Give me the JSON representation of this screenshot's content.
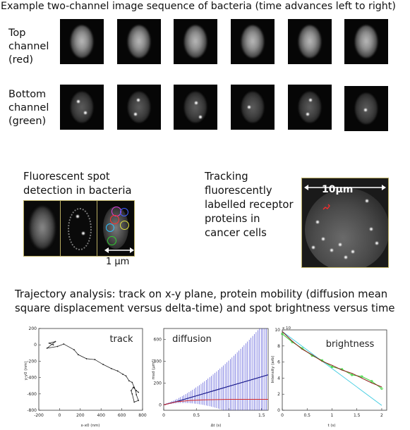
{
  "title": "Example two-channel image sequence of bacteria (time advances left to right)",
  "rows": {
    "top": [
      "Top",
      "channel",
      "(red)"
    ],
    "bottom": [
      "Bottom",
      "channel",
      "(green)"
    ]
  },
  "spot_detection": {
    "label": [
      "Fluorescent spot",
      "detection in bacteria"
    ],
    "scale": "1 μm"
  },
  "tracking": {
    "label": [
      "Tracking",
      "fluorescently",
      "labelled receptor",
      "proteins in",
      "cancer cells"
    ],
    "scale": "10μm"
  },
  "trajectory": {
    "label": [
      "Trajectory analysis: track on x-y plane, protein mobility (diffusion mean",
      "square displacement versus delta-time) and spot brightness versus time"
    ]
  },
  "chart_data": [
    {
      "type": "line",
      "title": "track",
      "xlabel": "x-x0 (nm)",
      "ylabel": "y-y0 (nm)",
      "xlim": [
        -200,
        800
      ],
      "ylim": [
        -800,
        200
      ],
      "xticks": [
        "-200",
        "0",
        "200",
        "400",
        "600",
        "800"
      ],
      "yticks": [
        "200",
        "0",
        "-200",
        "-400",
        "-600",
        "-800"
      ],
      "x": [
        -60,
        -100,
        -40,
        -120,
        -20,
        40,
        140,
        180,
        260,
        340,
        420,
        500,
        560,
        610,
        640,
        670,
        700,
        720,
        735,
        740,
        760,
        720,
        700,
        690,
        710,
        740,
        760
      ],
      "y": [
        0,
        20,
        40,
        -40,
        -20,
        10,
        -60,
        -120,
        -170,
        -180,
        -240,
        -290,
        -320,
        -360,
        -380,
        -440,
        -460,
        -520,
        -560,
        -610,
        -680,
        -700,
        -600,
        -560,
        -520,
        -560,
        -580
      ]
    },
    {
      "type": "line",
      "title": "diffusion",
      "xlabel": "Δt (s)",
      "ylabel": "msd (μm²)",
      "xlim": [
        0,
        1.6
      ],
      "ylim": [
        -50,
        700
      ],
      "xticks": [
        "0",
        "0.5",
        "1",
        "1.5"
      ],
      "yticks": [
        "600",
        "400",
        "200",
        "0"
      ],
      "series": [
        {
          "x": [
            0,
            0.2,
            0.4,
            0.6,
            0.8,
            1.0,
            1.2,
            1.4,
            1.6
          ],
          "values": [
            0,
            30,
            65,
            100,
            135,
            170,
            205,
            240,
            275
          ]
        },
        {
          "x": [
            0,
            0.2,
            0.4,
            0.6,
            0.8,
            1.0,
            1.2,
            1.4,
            1.6
          ],
          "values": [
            0,
            28,
            40,
            45,
            48,
            50,
            50,
            50,
            50
          ]
        }
      ]
    },
    {
      "type": "line",
      "title": "brightness",
      "xlabel": "t (s)",
      "ylabel": "Intensity (arb)",
      "axis_multiplier": "x 10",
      "xlim": [
        0,
        2.1
      ],
      "ylim": [
        0,
        10
      ],
      "xticks": [
        "0",
        "0.5",
        "1",
        "1.5",
        "2"
      ],
      "yticks": [
        "10",
        "8",
        "6",
        "4",
        "2",
        "0"
      ],
      "series": [
        {
          "x": [
            0,
            0.2,
            0.4,
            0.6,
            0.8,
            1.0,
            1.2,
            1.4,
            1.6,
            1.8,
            2.0
          ],
          "values": [
            9.8,
            8.6,
            7.6,
            6.9,
            6.1,
            5.6,
            5.0,
            4.6,
            4.0,
            3.4,
            2.9
          ]
        },
        {
          "x": [
            0,
            0.2,
            0.4,
            0.6,
            0.8,
            1.0,
            1.2,
            1.4,
            1.6,
            1.8,
            2.0
          ],
          "values": [
            9.5,
            8.5,
            7.7,
            6.8,
            6.2,
            5.4,
            5.1,
            4.4,
            4.2,
            3.6,
            2.7
          ]
        },
        {
          "x": [
            0,
            0.5,
            1.0,
            1.5,
            2.0
          ],
          "values": [
            9.8,
            7.5,
            5.2,
            2.9,
            0.6
          ]
        }
      ]
    }
  ],
  "colors": {
    "frame_border": "#b9ad62",
    "msd_fit": "#1a1a8c",
    "msd_error_bars": "#3b3bd1",
    "msd_confined": "#d42a2a",
    "brightness_data": "#3ad43a",
    "brightness_fit": "#8b1a1a",
    "brightness_linear": "#3ccbe0"
  }
}
